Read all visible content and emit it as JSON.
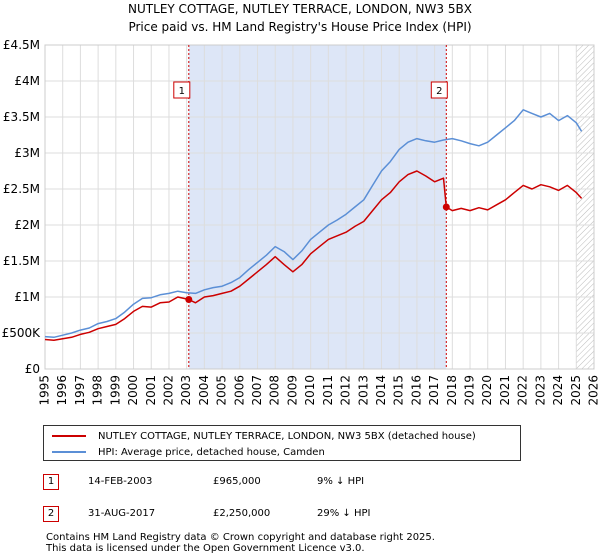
{
  "chart_data": {
    "type": "line",
    "title": "NUTLEY COTTAGE, NUTLEY TERRACE, LONDON, NW3 5BX",
    "subtitle": "Price paid vs. HM Land Registry's House Price Index (HPI)",
    "xlabel": "",
    "ylabel": "",
    "xlim": [
      1995,
      2026
    ],
    "ylim": [
      0,
      4500000
    ],
    "x_ticks": [
      "1995",
      "1996",
      "1997",
      "1998",
      "1999",
      "2000",
      "2001",
      "2002",
      "2003",
      "2004",
      "2005",
      "2006",
      "2007",
      "2008",
      "2009",
      "2010",
      "2011",
      "2012",
      "2013",
      "2014",
      "2015",
      "2016",
      "2017",
      "2018",
      "2019",
      "2020",
      "2021",
      "2022",
      "2023",
      "2024",
      "2025",
      "2026"
    ],
    "y_ticks": [
      {
        "value": 0,
        "label": "£0"
      },
      {
        "value": 500000,
        "label": "£500K"
      },
      {
        "value": 1000000,
        "label": "£1M"
      },
      {
        "value": 1500000,
        "label": "£1.5M"
      },
      {
        "value": 2000000,
        "label": "£2M"
      },
      {
        "value": 2500000,
        "label": "£2.5M"
      },
      {
        "value": 3000000,
        "label": "£3M"
      },
      {
        "value": 3500000,
        "label": "£3.5M"
      },
      {
        "value": 4000000,
        "label": "£4M"
      },
      {
        "value": 4500000,
        "label": "£4.5M"
      }
    ],
    "grid": true,
    "shaded_region": {
      "from": 2003.12,
      "to": 2017.66,
      "color": "#dde6f7"
    },
    "projection_start": 2025.0,
    "series": [
      {
        "name": "NUTLEY COTTAGE, NUTLEY TERRACE, LONDON, NW3 5BX (detached house)",
        "color": "#cc0000",
        "x": [
          1995.0,
          1995.5,
          1996.0,
          1996.5,
          1997.0,
          1997.5,
          1998.0,
          1998.5,
          1999.0,
          1999.5,
          2000.0,
          2000.5,
          2001.0,
          2001.5,
          2002.0,
          2002.5,
          2003.12,
          2003.5,
          2004.0,
          2004.5,
          2005.0,
          2005.5,
          2006.0,
          2006.5,
          2007.0,
          2007.5,
          2008.0,
          2008.5,
          2009.0,
          2009.5,
          2010.0,
          2010.5,
          2011.0,
          2011.5,
          2012.0,
          2012.5,
          2013.0,
          2013.5,
          2014.0,
          2014.5,
          2015.0,
          2015.5,
          2016.0,
          2016.5,
          2017.0,
          2017.5,
          2017.66,
          2018.0,
          2018.5,
          2019.0,
          2019.5,
          2020.0,
          2020.5,
          2021.0,
          2021.5,
          2022.0,
          2022.5,
          2023.0,
          2023.5,
          2024.0,
          2024.5,
          2025.0,
          2025.3
        ],
        "values": [
          410000,
          400000,
          420000,
          440000,
          480000,
          510000,
          560000,
          590000,
          620000,
          700000,
          800000,
          870000,
          860000,
          920000,
          930000,
          1000000,
          965000,
          920000,
          1000000,
          1020000,
          1050000,
          1080000,
          1150000,
          1250000,
          1350000,
          1450000,
          1560000,
          1450000,
          1350000,
          1450000,
          1600000,
          1700000,
          1800000,
          1850000,
          1900000,
          1980000,
          2050000,
          2200000,
          2350000,
          2450000,
          2600000,
          2700000,
          2750000,
          2680000,
          2600000,
          2650000,
          2250000,
          2200000,
          2230000,
          2200000,
          2240000,
          2210000,
          2280000,
          2350000,
          2450000,
          2550000,
          2500000,
          2560000,
          2530000,
          2480000,
          2550000,
          2450000,
          2370000
        ]
      },
      {
        "name": "HPI: Average price, detached house, Camden",
        "color": "#5b8fd6",
        "x": [
          1995.0,
          1995.5,
          1996.0,
          1996.5,
          1997.0,
          1997.5,
          1998.0,
          1998.5,
          1999.0,
          1999.5,
          2000.0,
          2000.5,
          2001.0,
          2001.5,
          2002.0,
          2002.5,
          2003.0,
          2003.5,
          2004.0,
          2004.5,
          2005.0,
          2005.5,
          2006.0,
          2006.5,
          2007.0,
          2007.5,
          2008.0,
          2008.5,
          2009.0,
          2009.5,
          2010.0,
          2010.5,
          2011.0,
          2011.5,
          2012.0,
          2012.5,
          2013.0,
          2013.5,
          2014.0,
          2014.5,
          2015.0,
          2015.5,
          2016.0,
          2016.5,
          2017.0,
          2017.5,
          2018.0,
          2018.5,
          2019.0,
          2019.5,
          2020.0,
          2020.5,
          2021.0,
          2021.5,
          2022.0,
          2022.5,
          2023.0,
          2023.5,
          2024.0,
          2024.5,
          2025.0,
          2025.3
        ],
        "values": [
          450000,
          440000,
          470000,
          500000,
          540000,
          570000,
          630000,
          660000,
          700000,
          790000,
          900000,
          980000,
          990000,
          1030000,
          1050000,
          1080000,
          1060000,
          1050000,
          1100000,
          1130000,
          1150000,
          1200000,
          1270000,
          1380000,
          1480000,
          1580000,
          1700000,
          1630000,
          1520000,
          1640000,
          1800000,
          1900000,
          2000000,
          2070000,
          2150000,
          2250000,
          2350000,
          2550000,
          2750000,
          2880000,
          3050000,
          3150000,
          3200000,
          3170000,
          3150000,
          3180000,
          3200000,
          3170000,
          3130000,
          3100000,
          3150000,
          3250000,
          3350000,
          3450000,
          3600000,
          3550000,
          3500000,
          3550000,
          3450000,
          3520000,
          3420000,
          3300000
        ]
      }
    ],
    "annotations": [
      {
        "label": "1",
        "x": 2003.12,
        "value": 965000
      },
      {
        "label": "2",
        "x": 2017.66,
        "value": 2250000
      }
    ]
  },
  "legend": {
    "property_label": "NUTLEY COTTAGE, NUTLEY TERRACE, LONDON, NW3 5BX (detached house)",
    "hpi_label": "HPI: Average price, detached house, Camden",
    "property_color": "#cc0000",
    "hpi_color": "#5b8fd6"
  },
  "sales": [
    {
      "num": "1",
      "date": "14-FEB-2003",
      "price": "£965,000",
      "hpi": "9% ↓ HPI"
    },
    {
      "num": "2",
      "date": "31-AUG-2017",
      "price": "£2,250,000",
      "hpi": "29% ↓ HPI"
    }
  ],
  "footer": {
    "line1": "Contains HM Land Registry data © Crown copyright and database right 2025.",
    "line2": "This data is licensed under the Open Government Licence v3.0."
  }
}
